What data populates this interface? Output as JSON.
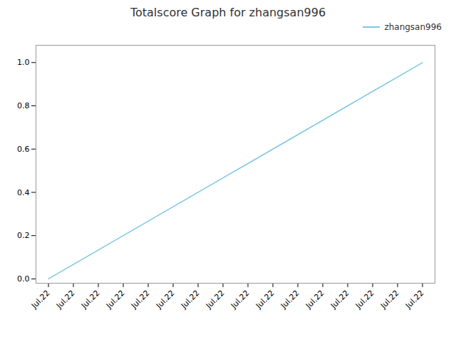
{
  "chart_data": {
    "type": "line",
    "title": "Totalscore Graph for zhangsan996",
    "x": [
      0,
      1,
      2,
      3,
      4,
      5,
      6,
      7,
      8,
      9,
      10,
      11,
      12,
      13,
      14,
      15
    ],
    "series": [
      {
        "name": "zhangsan996",
        "color": "#7EC8E3",
        "values": [
          0.0,
          0.0667,
          0.1333,
          0.2,
          0.2667,
          0.3333,
          0.4,
          0.4667,
          0.5333,
          0.6,
          0.6667,
          0.7333,
          0.8,
          0.8667,
          0.9333,
          1.0
        ]
      }
    ],
    "xlim": [
      -0.5,
      15.5
    ],
    "xticks": [
      {
        "value": 0,
        "label": "Jul.22"
      },
      {
        "value": 1,
        "label": "Jul.22"
      },
      {
        "value": 2,
        "label": "Jul.22"
      },
      {
        "value": 3,
        "label": "Jul.22"
      },
      {
        "value": 4,
        "label": "Jul.22"
      },
      {
        "value": 5,
        "label": "Jul.22"
      },
      {
        "value": 6,
        "label": "Jul.22"
      },
      {
        "value": 7,
        "label": "Jul.22"
      },
      {
        "value": 8,
        "label": "Jul.22"
      },
      {
        "value": 9,
        "label": "Jul.22"
      },
      {
        "value": 10,
        "label": "Jul.22"
      },
      {
        "value": 11,
        "label": "Jul.22"
      },
      {
        "value": 12,
        "label": "Jul.22"
      },
      {
        "value": 13,
        "label": "Jul.22"
      },
      {
        "value": 14,
        "label": "Jul.22"
      },
      {
        "value": 15,
        "label": "Jul.22"
      }
    ],
    "ylim": [
      -0.02,
      1.08
    ],
    "yticks": [
      {
        "value": 0.0,
        "label": "0.0"
      },
      0.2,
      0.4,
      0.6,
      0.8,
      {
        "value": 1.0,
        "label": "1.0"
      }
    ],
    "grid": false,
    "legend": "upper right"
  }
}
